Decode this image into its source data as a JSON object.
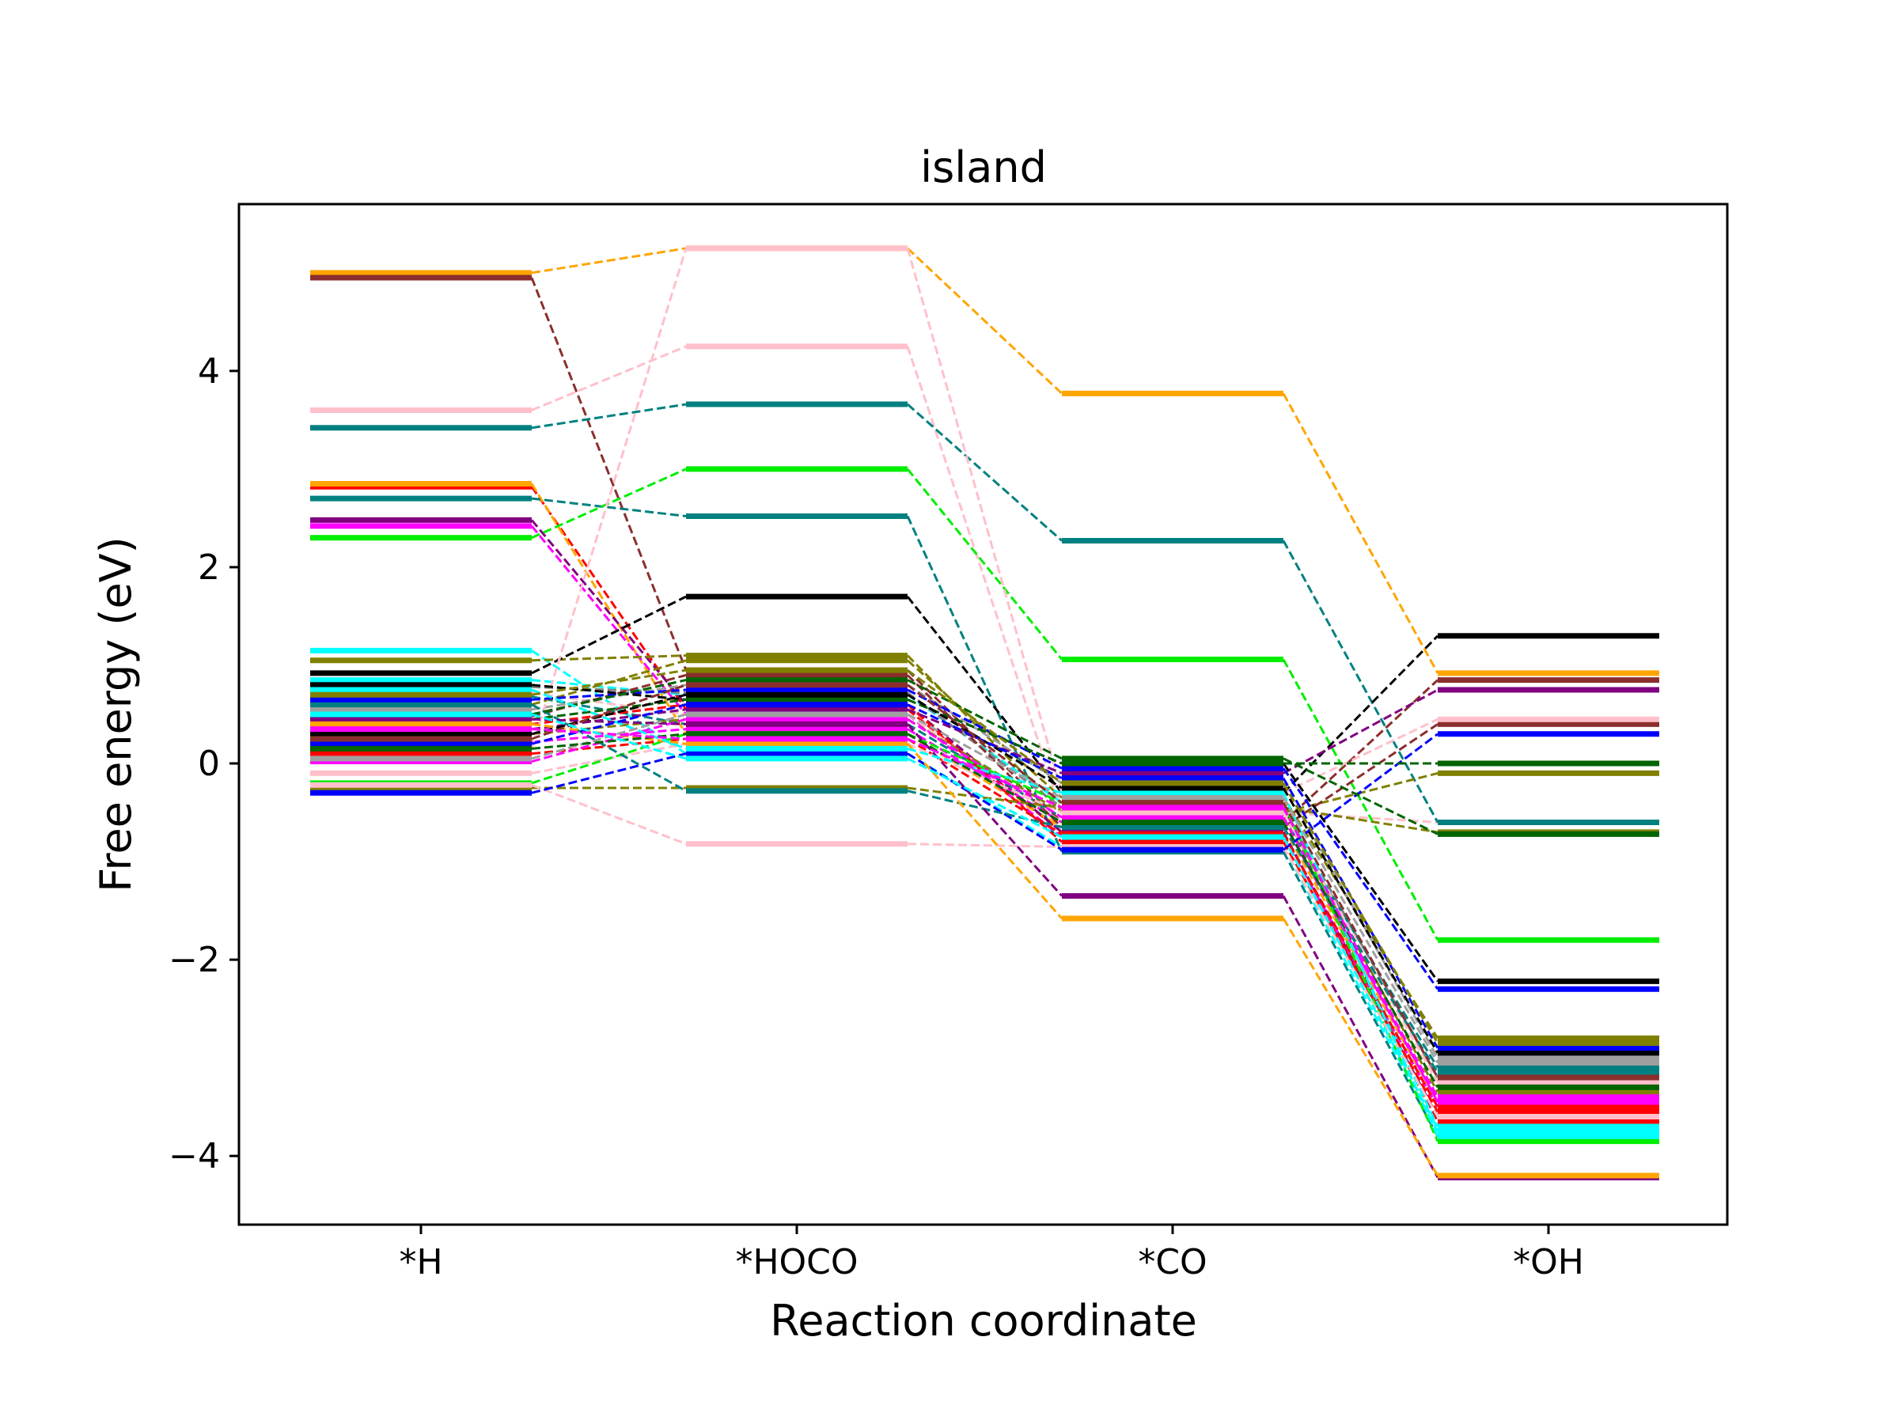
{
  "chart_data": {
    "type": "line",
    "title": "island",
    "xlabel": "Reaction coordinate",
    "ylabel": "Free energy (eV)",
    "categories": [
      "*H",
      "*HOCO",
      "*CO",
      "*OH"
    ],
    "ylim": [
      -4.7,
      5.7
    ],
    "yticks": [
      -4,
      -2,
      0,
      2,
      4
    ],
    "ytick_labels": [
      "−4",
      "−2",
      "0",
      "2",
      "4"
    ],
    "grid": false,
    "legend": "none",
    "series": [
      {
        "color": "#ffa500",
        "values": [
          5.0,
          5.25,
          3.77,
          0.92
        ]
      },
      {
        "color": "#8b2e2e",
        "values": [
          4.95,
          0.95,
          -0.6,
          0.85
        ]
      },
      {
        "color": "#ffc0cb",
        "values": [
          3.6,
          4.25,
          -0.5,
          -0.6
        ]
      },
      {
        "color": "#008080",
        "values": [
          3.42,
          3.66,
          2.27,
          -0.6
        ]
      },
      {
        "color": "#ff0000",
        "values": [
          2.82,
          0.55,
          -0.7,
          -3.65
        ]
      },
      {
        "color": "#ffa500",
        "values": [
          2.85,
          0.3,
          -0.65,
          -3.45
        ]
      },
      {
        "color": "#008080",
        "values": [
          2.7,
          2.52,
          -0.9,
          -3.8
        ]
      },
      {
        "color": "#800080",
        "values": [
          2.48,
          0.6,
          -0.7,
          -3.6
        ]
      },
      {
        "color": "#ff00ff",
        "values": [
          2.42,
          0.5,
          -0.75,
          -3.5
        ]
      },
      {
        "color": "#00ee00",
        "values": [
          2.3,
          3.0,
          1.06,
          -1.8
        ]
      },
      {
        "color": "#00ffff",
        "values": [
          1.15,
          0.1,
          -0.85,
          -3.75
        ]
      },
      {
        "color": "#808000",
        "values": [
          1.05,
          1.1,
          -0.5,
          -0.1
        ]
      },
      {
        "color": "#000000",
        "values": [
          0.92,
          1.7,
          -0.3,
          1.3
        ]
      },
      {
        "color": "#00ffff",
        "values": [
          0.85,
          0.7,
          -0.4,
          -3.7
        ]
      },
      {
        "color": "#808080",
        "values": [
          0.78,
          0.72,
          -0.45,
          -3.2
        ]
      },
      {
        "color": "#ffc0cb",
        "values": [
          0.72,
          0.5,
          -0.6,
          -3.3
        ]
      },
      {
        "color": "#008080",
        "values": [
          0.68,
          0.4,
          -0.55,
          -3.1
        ]
      },
      {
        "color": "#808000",
        "values": [
          0.6,
          1.05,
          -0.35,
          -2.8
        ]
      },
      {
        "color": "#a0a0a0",
        "values": [
          0.55,
          0.8,
          -0.2,
          -3.0
        ]
      },
      {
        "color": "#8b2e2e",
        "values": [
          0.48,
          0.9,
          -0.65,
          0.4
        ]
      },
      {
        "color": "#ff0000",
        "values": [
          0.4,
          0.6,
          -0.8,
          -3.55
        ]
      },
      {
        "color": "#800080",
        "values": [
          0.35,
          0.55,
          -0.1,
          0.75
        ]
      },
      {
        "color": "#808000",
        "values": [
          0.3,
          0.45,
          -0.5,
          -3.35
        ]
      },
      {
        "color": "#ff00ff",
        "values": [
          0.22,
          0.35,
          -0.6,
          -3.4
        ]
      },
      {
        "color": "#ffc0cb",
        "values": [
          0.15,
          5.25,
          -0.3,
          0.45
        ]
      },
      {
        "color": "#ff0000",
        "values": [
          0.1,
          0.25,
          -0.72,
          -3.5
        ]
      },
      {
        "color": "#ff00ff",
        "values": [
          0.02,
          0.45,
          -0.55,
          -3.45
        ]
      },
      {
        "color": "#ffc0cb",
        "values": [
          -0.1,
          0.2,
          -0.5,
          -3.25
        ]
      },
      {
        "color": "#00ee00",
        "values": [
          -0.2,
          0.3,
          -0.4,
          -3.85
        ]
      },
      {
        "color": "#808000",
        "values": [
          -0.25,
          -0.25,
          -0.45,
          -0.7
        ]
      },
      {
        "color": "#ffc0cb",
        "values": [
          -0.22,
          -0.82,
          -0.85,
          -3.6
        ]
      },
      {
        "color": "#0000ff",
        "values": [
          -0.3,
          0.1,
          -0.88,
          0.3
        ]
      },
      {
        "color": "#008080",
        "values": [
          0.6,
          -0.28,
          -0.65,
          -3.15
        ]
      },
      {
        "color": "#0000ff",
        "values": [
          0.65,
          0.75,
          -0.05,
          -2.3
        ]
      },
      {
        "color": "#000000",
        "values": [
          0.8,
          0.65,
          0.0,
          -2.22
        ]
      },
      {
        "color": "#006400",
        "values": [
          0.5,
          0.85,
          0.05,
          -0.72
        ]
      },
      {
        "color": "#006400",
        "values": [
          0.45,
          0.65,
          0.0,
          0.0
        ]
      },
      {
        "color": "#800080",
        "values": [
          0.45,
          0.4,
          -1.35,
          -4.22
        ]
      },
      {
        "color": "#ffa500",
        "values": [
          0.4,
          0.2,
          -1.58,
          -4.2
        ]
      },
      {
        "color": "#00ffff",
        "values": [
          0.75,
          0.15,
          -0.3,
          -3.8
        ]
      },
      {
        "color": "#000000",
        "values": [
          0.3,
          0.7,
          -0.25,
          -2.95
        ]
      },
      {
        "color": "#0000ff",
        "values": [
          0.2,
          0.6,
          -0.15,
          -2.9
        ]
      },
      {
        "color": "#a0a0a0",
        "values": [
          0.05,
          0.5,
          -0.35,
          -3.05
        ]
      },
      {
        "color": "#8b2e2e",
        "values": [
          0.25,
          0.8,
          -0.4,
          -3.2
        ]
      },
      {
        "color": "#808000",
        "values": [
          0.7,
          0.95,
          -0.2,
          -2.85
        ]
      },
      {
        "color": "#006400",
        "values": [
          0.15,
          0.3,
          -0.6,
          -3.3
        ]
      },
      {
        "color": "#ff00ff",
        "values": [
          0.35,
          0.25,
          -0.45,
          -3.45
        ]
      },
      {
        "color": "#00ffff",
        "values": [
          0.5,
          0.05,
          -0.75,
          -3.72
        ]
      }
    ]
  }
}
